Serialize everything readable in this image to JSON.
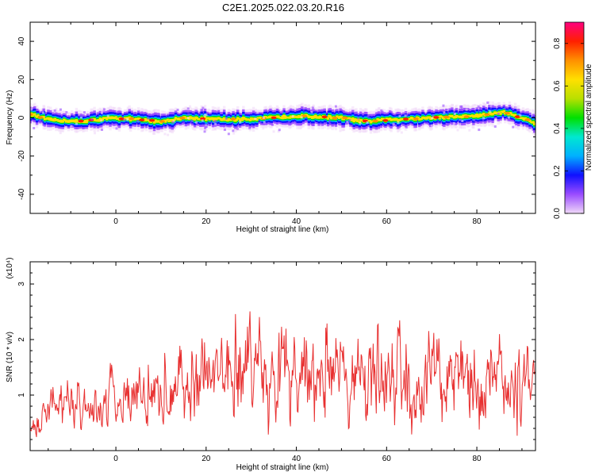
{
  "page_title": "C2E1.2025.022.03.20.R16",
  "chart_data": [
    {
      "type": "heatmap",
      "title": "C2E1.2025.022.03.20.R16",
      "xlabel": "Height of straight line (km)",
      "ylabel": "Frequency (Hz)",
      "xlim": [
        -19,
        93
      ],
      "ylim": [
        -50,
        50
      ],
      "xticks": [
        0,
        20,
        40,
        60,
        80
      ],
      "yticks": [
        -40,
        -20,
        0,
        20,
        40
      ],
      "colorbar": {
        "label": "Normalized spectral amplitude",
        "range": [
          0.0,
          0.9
        ],
        "ticks": [
          0.0,
          0.2,
          0.4,
          0.6,
          0.8
        ],
        "colors": [
          "#f0d8f8",
          "#9a4cff",
          "#1010ff",
          "#00b0ff",
          "#00e8d0",
          "#00e000",
          "#b8e000",
          "#ffe000",
          "#ff9000",
          "#ff2000",
          "#ff007f"
        ]
      },
      "ridge_center_frequency": [
        {
          "x": -19,
          "y": 2
        },
        {
          "x": -15,
          "y": -1
        },
        {
          "x": -8,
          "y": -2
        },
        {
          "x": 0,
          "y": 0
        },
        {
          "x": 10,
          "y": -2
        },
        {
          "x": 15,
          "y": 0
        },
        {
          "x": 25,
          "y": -1
        },
        {
          "x": 35,
          "y": 0
        },
        {
          "x": 40,
          "y": 1
        },
        {
          "x": 50,
          "y": 0
        },
        {
          "x": 55,
          "y": -2
        },
        {
          "x": 60,
          "y": -1
        },
        {
          "x": 70,
          "y": 0
        },
        {
          "x": 80,
          "y": 1
        },
        {
          "x": 86,
          "y": 3
        },
        {
          "x": 90,
          "y": 0
        },
        {
          "x": 93,
          "y": -3
        }
      ],
      "ridge_halfwidth_hz": 3
    },
    {
      "type": "line",
      "xlabel": "Height of straight line (km)",
      "ylabel": "SNR (10 * v/v)",
      "y_multiplier": "(x10⁴)",
      "xlim": [
        -19,
        93
      ],
      "ylim": [
        0,
        3.4
      ],
      "xticks": [
        0,
        20,
        40,
        60,
        80
      ],
      "yticks": [
        1,
        2,
        3
      ],
      "color": "#e83030",
      "series_envelope": [
        {
          "x": -19,
          "lo": 0.1,
          "hi": 1.0
        },
        {
          "x": -10,
          "lo": 0.3,
          "hi": 1.8
        },
        {
          "x": 0,
          "lo": 0.3,
          "hi": 2.0
        },
        {
          "x": 10,
          "lo": 0.3,
          "hi": 2.0
        },
        {
          "x": 18,
          "lo": 0.4,
          "hi": 3.0
        },
        {
          "x": 30,
          "lo": 0.3,
          "hi": 3.3
        },
        {
          "x": 40,
          "lo": 0.3,
          "hi": 3.3
        },
        {
          "x": 50,
          "lo": 0.3,
          "hi": 3.0
        },
        {
          "x": 56,
          "lo": 0.3,
          "hi": 3.4
        },
        {
          "x": 67,
          "lo": 0.3,
          "hi": 3.2
        },
        {
          "x": 80,
          "lo": 0.3,
          "hi": 3.0
        },
        {
          "x": 88,
          "lo": 0.3,
          "hi": 3.4
        },
        {
          "x": 93,
          "lo": 0.5,
          "hi": 2.2
        }
      ]
    }
  ]
}
